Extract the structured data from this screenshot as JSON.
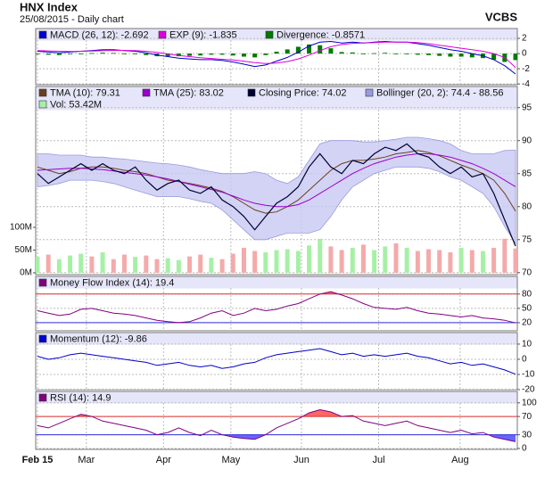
{
  "header": {
    "title": "HNX Index",
    "subtitle": "25/08/2015 - Daily chart",
    "brand": "VCBS"
  },
  "x_axis": {
    "xlim": [
      0,
      44
    ],
    "xticks": [
      {
        "value": 0,
        "label": "Feb 15"
      },
      {
        "value": 4.5,
        "label": "Mar"
      },
      {
        "value": 11.6,
        "label": "Apr"
      },
      {
        "value": 17.8,
        "label": "May"
      },
      {
        "value": 24.3,
        "label": "Jun"
      },
      {
        "value": 31.4,
        "label": "Jul"
      },
      {
        "value": 38.9,
        "label": "Aug"
      }
    ]
  },
  "chart_data": [
    {
      "type": "line",
      "ylim": [
        -4.1,
        3.3
      ],
      "yticks": [
        2,
        0,
        -2,
        -4
      ],
      "grid": true,
      "legend": "top-left",
      "series": [
        {
          "name": "MACD (26, 12): -2.692",
          "color": "#0000cc",
          "style": "line",
          "values": [
            0.3,
            0.2,
            0.1,
            0.2,
            0.3,
            0.4,
            0.5,
            0.5,
            0.4,
            0.3,
            0.1,
            -0.2,
            -0.4,
            -0.6,
            -0.7,
            -0.8,
            -0.8,
            -0.9,
            -1.1,
            -1.4,
            -1.7,
            -1.5,
            -1.0,
            -0.5,
            0.2,
            1.0,
            1.5,
            1.6,
            1.4,
            1.5,
            1.4,
            1.5,
            1.6,
            1.5,
            1.5,
            1.3,
            1.1,
            0.8,
            0.5,
            0.3,
            0,
            -0.3,
            -0.8,
            -1.6,
            -2.692
          ]
        },
        {
          "name": "EXP (9): -1.835",
          "color": "#dd00dd",
          "style": "line",
          "values": [
            0.4,
            0.35,
            0.3,
            0.28,
            0.3,
            0.33,
            0.38,
            0.42,
            0.42,
            0.4,
            0.3,
            0.15,
            -0.05,
            -0.25,
            -0.4,
            -0.55,
            -0.65,
            -0.75,
            -0.85,
            -1.0,
            -1.2,
            -1.3,
            -1.25,
            -1.05,
            -0.7,
            -0.2,
            0.4,
            0.9,
            1.2,
            1.35,
            1.4,
            1.45,
            1.5,
            1.5,
            1.5,
            1.45,
            1.3,
            1.1,
            0.9,
            0.7,
            0.5,
            0.3,
            0,
            -0.5,
            -1.835
          ]
        },
        {
          "name": "Divergence: -0.8571",
          "color": "#007a00",
          "style": "bars",
          "values": [
            -0.1,
            -0.15,
            -0.2,
            -0.08,
            0,
            0.07,
            0.12,
            0.08,
            -0.02,
            -0.1,
            -0.2,
            -0.35,
            -0.35,
            -0.35,
            -0.3,
            -0.25,
            -0.15,
            -0.15,
            -0.25,
            -0.4,
            -0.5,
            -0.2,
            0.25,
            0.55,
            0.9,
            1.2,
            1.1,
            0.7,
            0.2,
            0.15,
            0,
            0.05,
            0.1,
            0,
            0,
            -0.15,
            -0.2,
            -0.3,
            -0.4,
            -0.4,
            -0.5,
            -0.6,
            -0.8,
            -1.1,
            -0.8571
          ]
        }
      ]
    },
    {
      "type": "line",
      "ylim": [
        69.7,
        98.2
      ],
      "yticks": [
        95,
        90,
        85,
        80,
        75,
        70
      ],
      "y2lim": [
        -4,
        410
      ],
      "y2ticks": [
        {
          "value": 100,
          "label": "100M"
        },
        {
          "value": 50,
          "label": "50M"
        },
        {
          "value": 0,
          "label": "0M"
        }
      ],
      "grid": true,
      "legend": "top-left",
      "series": [
        {
          "name": "TMA (10): 79.31",
          "color": "#6b3f1f",
          "style": "line",
          "values": [
            86,
            85.5,
            85,
            85.3,
            85.8,
            86,
            86,
            85.8,
            85.5,
            85.3,
            85,
            84.5,
            84,
            83.8,
            83.5,
            83.2,
            82.8,
            82.3,
            81.5,
            80.5,
            79.5,
            79,
            79.2,
            80,
            81,
            82.5,
            84,
            85.5,
            86.5,
            87,
            87,
            87.2,
            87.5,
            88,
            88.2,
            88.5,
            88.2,
            87.7,
            87,
            86.3,
            85.7,
            85,
            84,
            82,
            79.31
          ]
        },
        {
          "name": "TMA (25): 83.02",
          "color": "#9900cc",
          "style": "line",
          "values": [
            85.5,
            85.6,
            85.7,
            85.8,
            85.8,
            85.7,
            85.6,
            85.4,
            85.2,
            85,
            84.8,
            84.5,
            84.2,
            83.8,
            83.4,
            83,
            82.6,
            82.2,
            81.6,
            81,
            80.5,
            80.2,
            80,
            80,
            80.3,
            81,
            82,
            83,
            84,
            85,
            85.8,
            86.5,
            87,
            87.5,
            87.8,
            88,
            88,
            87.8,
            87.5,
            87,
            86.5,
            85.8,
            85,
            84,
            83.02
          ]
        },
        {
          "name": "Closing Price: 74.02",
          "color": "#000033",
          "style": "price",
          "values": [
            85,
            83.5,
            84.5,
            85.5,
            86.5,
            85.5,
            86.5,
            85.5,
            85,
            86,
            84,
            82.5,
            83.5,
            84,
            82.5,
            82,
            83,
            81,
            80,
            78.5,
            76.5,
            78.5,
            80.5,
            81.5,
            83,
            86,
            88,
            86,
            85,
            87,
            86.5,
            88,
            89,
            88.5,
            89.5,
            88,
            87.5,
            86,
            85,
            86,
            84.5,
            85,
            82,
            78,
            74.02
          ]
        },
        {
          "name": "Bollinger (20, 2): 74.4 - 88.56",
          "color": "#c8c8f2",
          "style": "band",
          "upper": [
            88,
            88,
            87.8,
            87.8,
            87.8,
            87.5,
            87.5,
            87.3,
            87.2,
            87,
            86.8,
            86.6,
            86.5,
            86.3,
            86,
            85.6,
            85.3,
            85,
            85,
            85,
            85.3,
            85,
            84,
            83.5,
            84.5,
            87,
            89.5,
            90,
            90,
            90,
            89.8,
            89.8,
            90,
            90.2,
            90.5,
            90.5,
            90.3,
            90,
            89.5,
            88.5,
            88,
            88,
            88,
            88.5,
            88.56
          ],
          "lower": [
            83,
            83.2,
            83.5,
            84,
            84,
            84,
            83.8,
            83.5,
            83,
            82.5,
            82,
            81.5,
            81.5,
            81.5,
            81.2,
            80.8,
            80.5,
            79.5,
            78,
            76.5,
            75,
            75,
            75.5,
            76,
            76,
            76,
            76.5,
            78.5,
            81,
            83,
            84,
            85,
            85.5,
            86,
            86,
            86,
            85.8,
            85.3,
            84.5,
            84,
            83,
            82,
            80,
            77,
            74.4
          ]
        },
        {
          "name": "Vol: 53.42M",
          "color": "#a6f0a6",
          "down_color": "#f4aaaa",
          "style": "volume",
          "axis": "y2",
          "values": [
            35,
            40,
            30,
            38,
            42,
            36,
            45,
            30,
            40,
            35,
            38,
            30,
            32,
            28,
            36,
            40,
            33,
            30,
            42,
            55,
            48,
            45,
            50,
            52,
            48,
            60,
            75,
            58,
            50,
            55,
            62,
            50,
            58,
            65,
            55,
            48,
            52,
            50,
            45,
            55,
            50,
            48,
            55,
            75,
            53.42
          ]
        }
      ]
    },
    {
      "type": "line",
      "ylim": [
        3,
        117
      ],
      "yticks": [
        80,
        50,
        20
      ],
      "thresholds": [
        20,
        80
      ],
      "grid": true,
      "legend": "top-left",
      "series": [
        {
          "name": "Money Flow Index (14): 19.4",
          "color": "#800080",
          "style": "line",
          "values": [
            45,
            40,
            35,
            38,
            48,
            50,
            45,
            40,
            38,
            35,
            30,
            25,
            22,
            20,
            22,
            30,
            40,
            45,
            35,
            40,
            50,
            45,
            48,
            55,
            60,
            70,
            80,
            85,
            78,
            70,
            60,
            52,
            50,
            48,
            52,
            45,
            40,
            38,
            35,
            32,
            35,
            30,
            28,
            25,
            19.4
          ]
        }
      ]
    },
    {
      "type": "line",
      "ylim": [
        -20,
        17.6
      ],
      "yticks": [
        10,
        0,
        -10,
        -20
      ],
      "grid": true,
      "legend": "top-left",
      "series": [
        {
          "name": "Momentum (12): -9.86",
          "color": "#0000cc",
          "style": "line",
          "values": [
            2,
            0,
            1,
            3,
            4,
            3,
            2,
            1,
            0,
            -1,
            -2,
            -4,
            -3,
            -2,
            -4,
            -5,
            -4,
            -6,
            -5,
            -3,
            -2,
            1,
            3,
            4,
            5,
            6,
            7,
            5,
            3,
            4,
            2,
            3,
            2,
            3,
            4,
            2,
            1,
            -1,
            -3,
            -2,
            -4,
            -3,
            -5,
            -7,
            -9.86
          ]
        }
      ]
    },
    {
      "type": "line",
      "ylim": [
        -2,
        125
      ],
      "yticks": [
        100,
        70,
        30,
        0
      ],
      "thresholds": [
        30,
        70
      ],
      "grid": true,
      "legend": "top-left",
      "series": [
        {
          "name": "RSI (14): 14.9",
          "color": "#800080",
          "style": "line",
          "values": [
            50,
            45,
            55,
            65,
            75,
            70,
            60,
            55,
            50,
            45,
            40,
            30,
            35,
            45,
            35,
            28,
            40,
            30,
            25,
            22,
            20,
            30,
            45,
            55,
            65,
            78,
            85,
            80,
            70,
            72,
            60,
            55,
            50,
            55,
            60,
            50,
            45,
            40,
            35,
            40,
            32,
            35,
            25,
            20,
            14.9
          ]
        }
      ]
    }
  ]
}
